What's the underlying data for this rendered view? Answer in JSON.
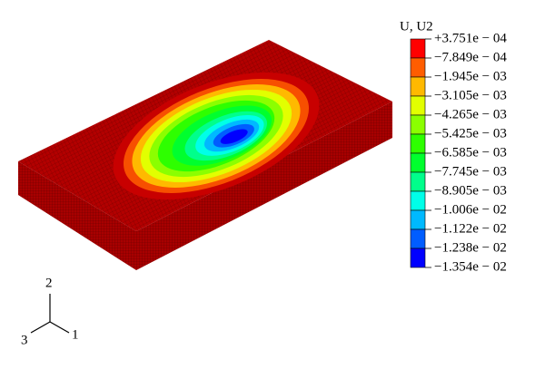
{
  "legend": {
    "title": "U, U2",
    "labels": [
      "+3.751e − 04",
      "−7.849e − 04",
      "−1.945e − 03",
      "−3.105e − 03",
      "−4.265e − 03",
      "−5.425e − 03",
      "−6.585e − 03",
      "−7.745e − 03",
      "−8.905e − 03",
      "−1.006e − 02",
      "−1.122e − 02",
      "−1.238e − 02",
      "−1.354e − 02"
    ]
  },
  "triad": {
    "axis_2": "2",
    "axis_1": "1",
    "axis_3": "3"
  }
}
